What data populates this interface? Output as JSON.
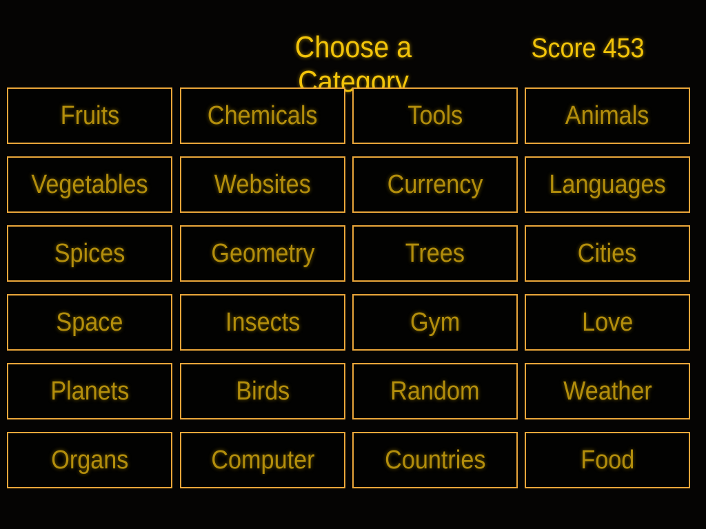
{
  "header": {
    "title": "Choose a Category",
    "score_label": "Score 453"
  },
  "colors": {
    "background": "#050403",
    "border": "#eaa63a",
    "text": "#b38e0c",
    "title": "#f2c40a"
  },
  "categories": [
    "Fruits",
    "Chemicals",
    "Tools",
    "Animals",
    "Vegetables",
    "Websites",
    "Currency",
    "Languages",
    "Spices",
    "Geometry",
    "Trees",
    "Cities",
    "Space",
    "Insects",
    "Gym",
    "Love",
    "Planets",
    "Birds",
    "Random",
    "Weather",
    "Organs",
    "Computer",
    "Countries",
    "Food"
  ]
}
